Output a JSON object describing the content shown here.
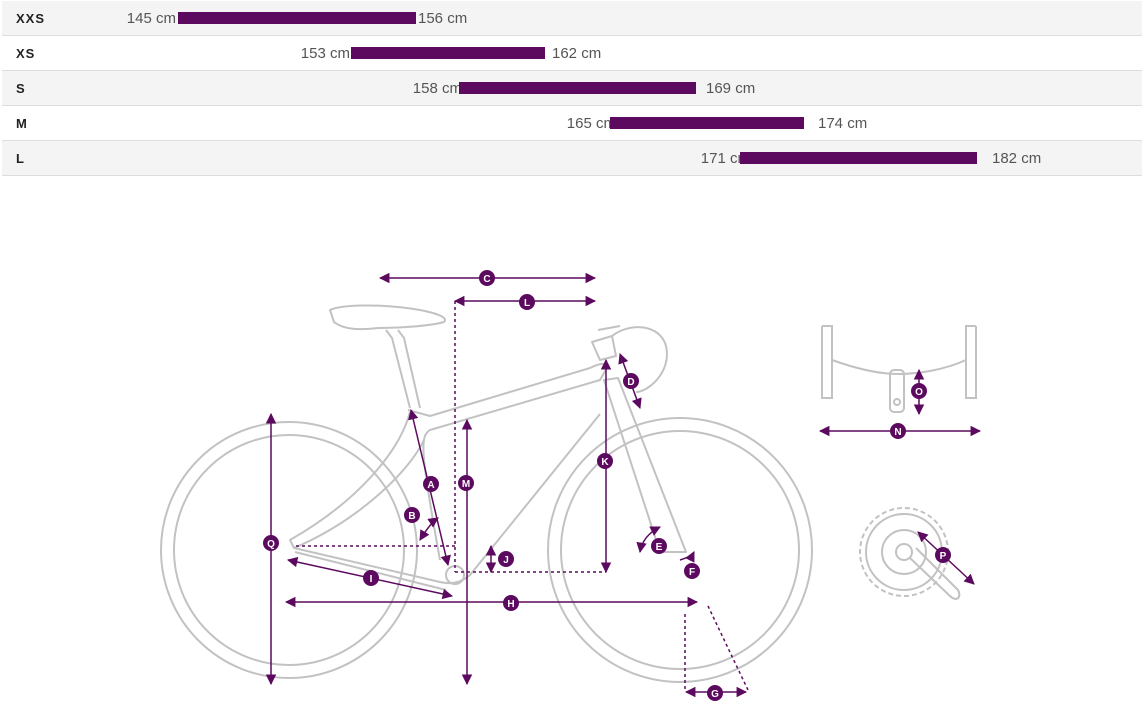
{
  "colors": {
    "accent": "#5c0a5f",
    "frame_line": "#c2c2c2",
    "row_alt": "#f4f4f4"
  },
  "size_chart": {
    "unit": "cm",
    "rows": [
      {
        "size": "XXS",
        "min_label": "145 cm",
        "max_label": "156 cm",
        "min": 145,
        "max": 156
      },
      {
        "size": "XS",
        "min_label": "153 cm",
        "max_label": "162 cm",
        "min": 153,
        "max": 162
      },
      {
        "size": "S",
        "min_label": "158 cm",
        "max_label": "169 cm",
        "min": 158,
        "max": 169
      },
      {
        "size": "M",
        "min_label": "165 cm",
        "max_label": "174 cm",
        "min": 165,
        "max": 174
      },
      {
        "size": "L",
        "min_label": "171 cm",
        "max_label": "182 cm",
        "min": 171,
        "max": 182
      }
    ]
  },
  "geometry_labels": {
    "A": "A",
    "B": "B",
    "C": "C",
    "D": "D",
    "E": "E",
    "F": "F",
    "G": "G",
    "H": "H",
    "I": "I",
    "J": "J",
    "K": "K",
    "L": "L",
    "M": "M",
    "N": "N",
    "O": "O",
    "P": "P",
    "Q": "Q"
  }
}
